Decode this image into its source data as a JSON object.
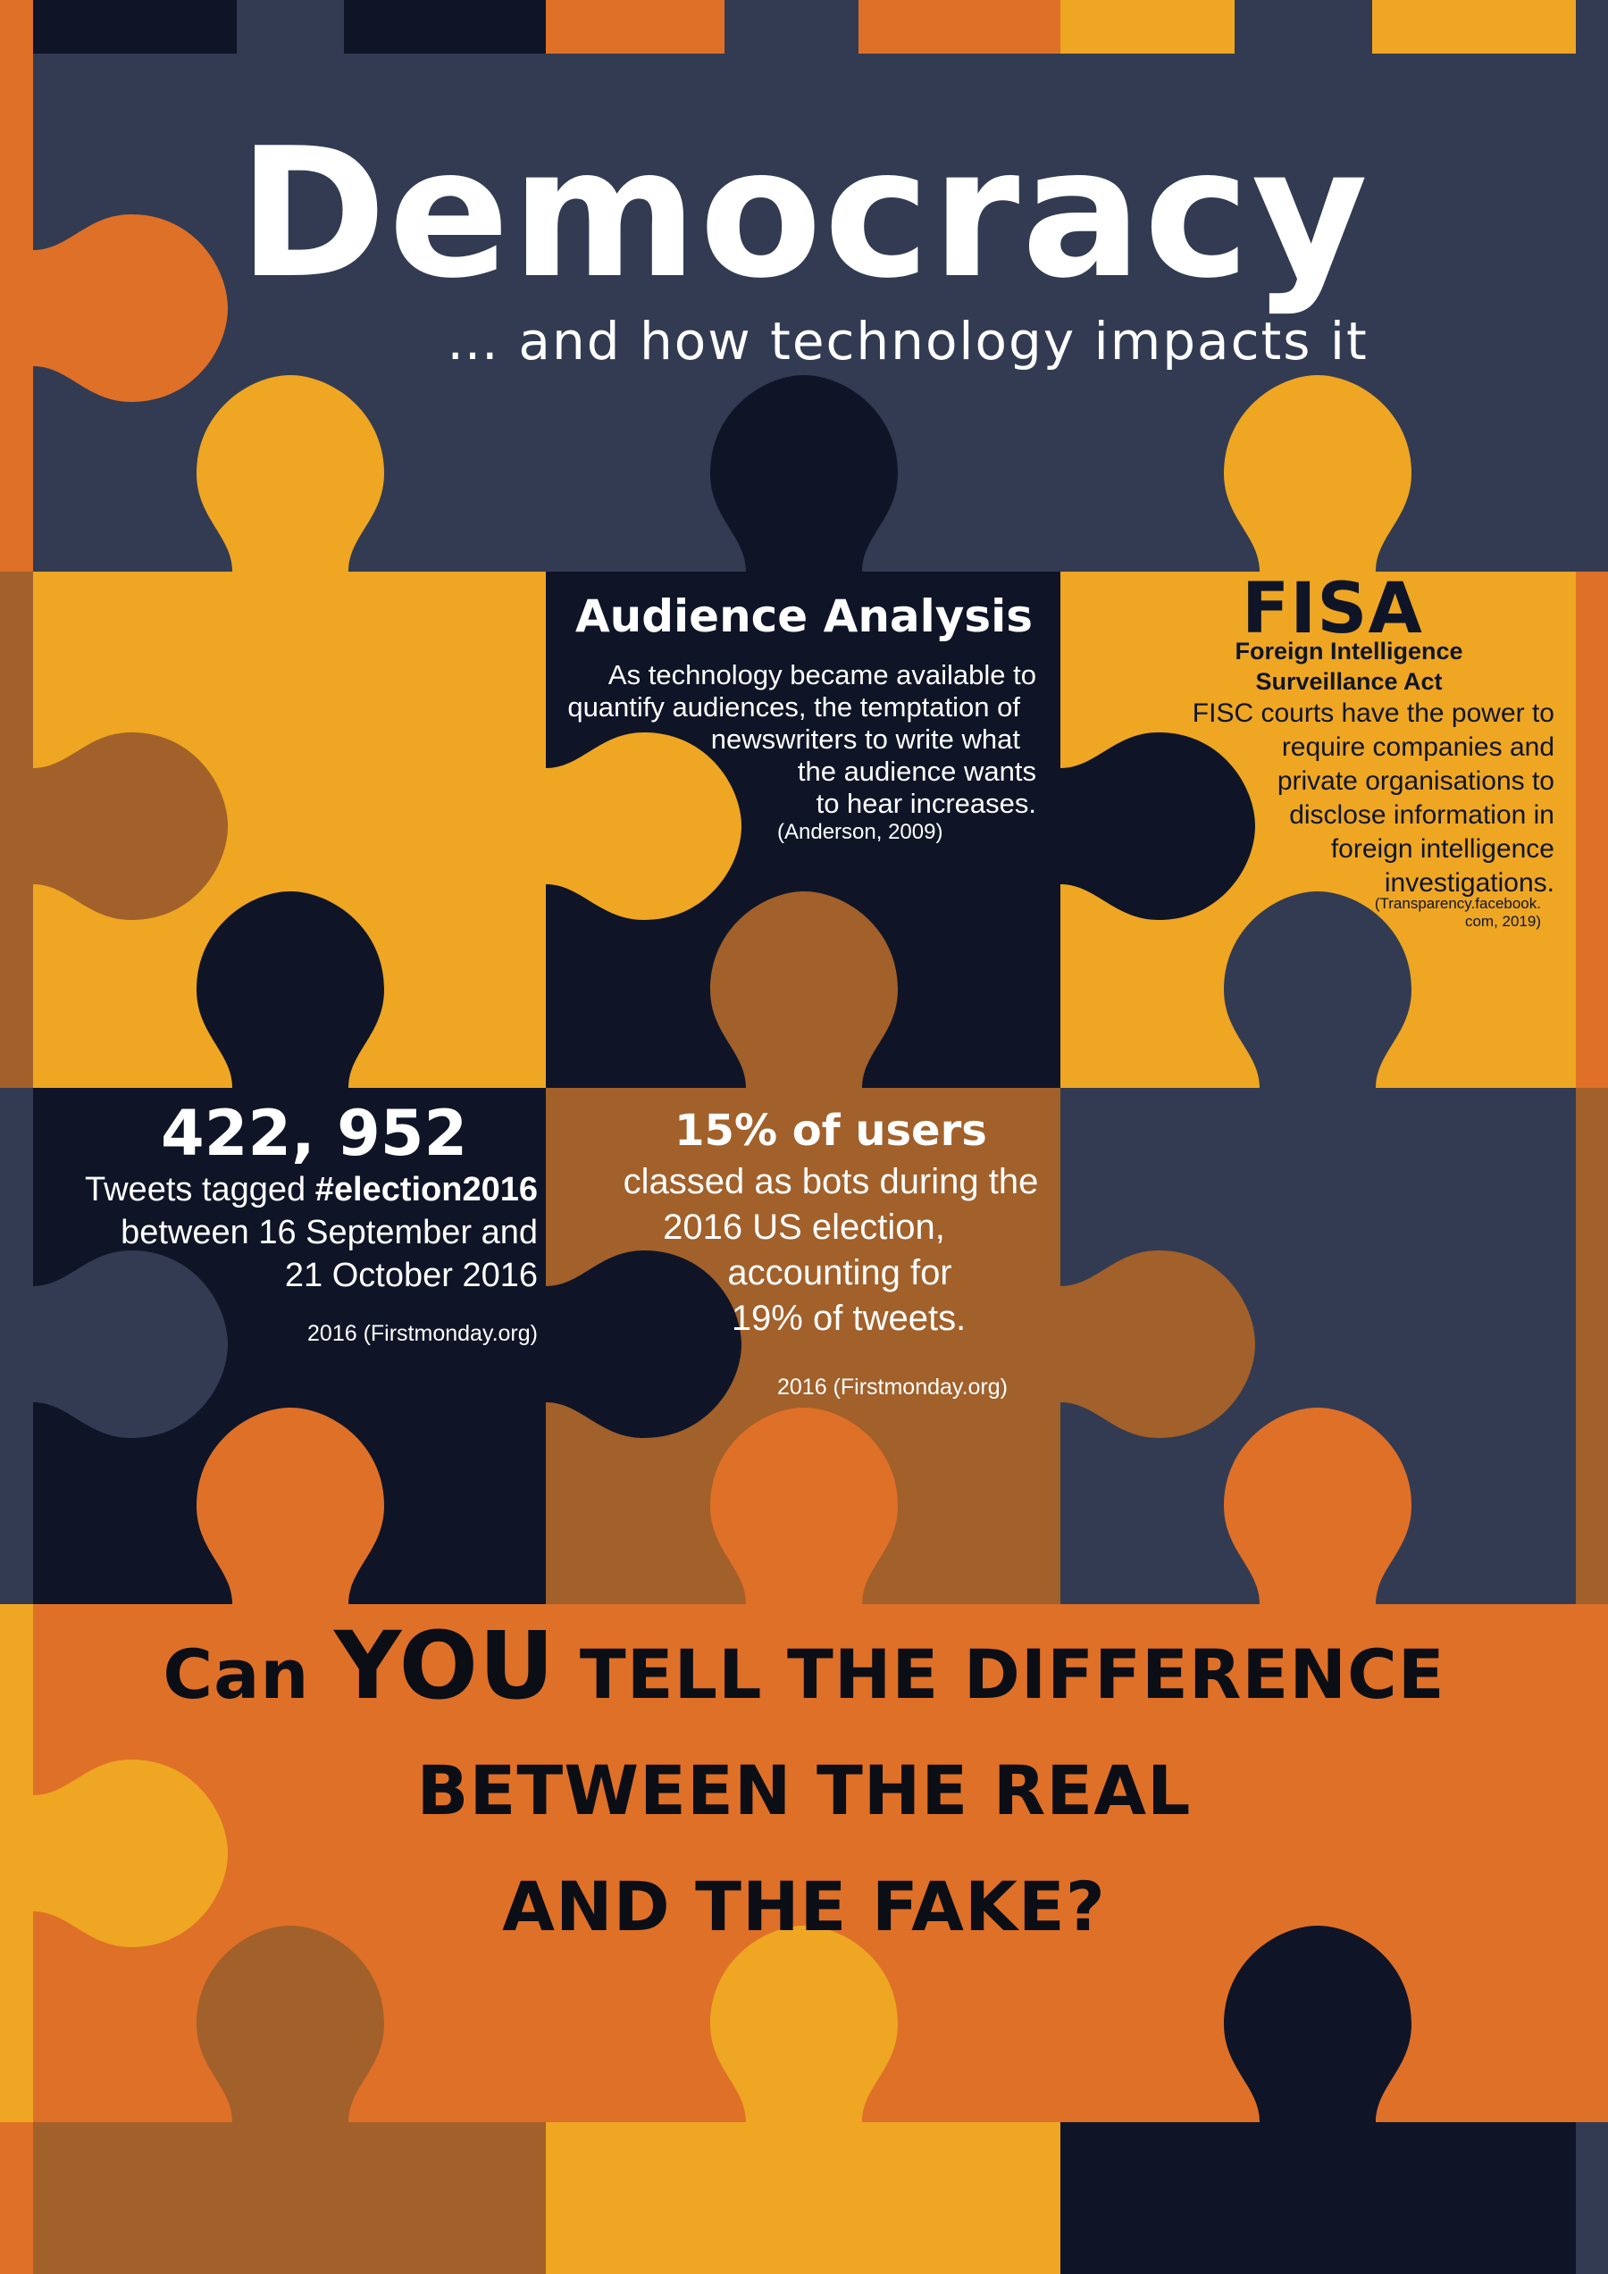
{
  "poster": {
    "title": "Democracy",
    "subtitle": "… and how technology impacts it"
  },
  "audience_analysis": {
    "heading": "Audience Analysis",
    "lines": [
      "As technology became available to",
      "quantify audiences, the temptation of",
      "newswriters to write what",
      "the audience wants",
      "to hear increases."
    ],
    "citation": "(Anderson, 2009)"
  },
  "fisa": {
    "heading": "FISA",
    "subheading_lines": [
      "Foreign Intelligence",
      "Surveillance Act"
    ],
    "lines": [
      "FISC courts have the power to",
      "require companies and",
      "private organisations to",
      "disclose information in",
      "foreign intelligence",
      "investigations."
    ],
    "citation_lines": [
      "(Transparency.facebook.",
      "com, 2019)"
    ]
  },
  "tweets": {
    "number": "422, 952",
    "line1_prefix": "Tweets tagged ",
    "hashtag": "#election2016",
    "line2": "between 16 September and",
    "line3": "21 October 2016",
    "citation": "2016 (Firstmonday.org)"
  },
  "bots": {
    "heading": "15% of users",
    "lines": [
      "classed as bots during the",
      "2016 US election,",
      "accounting for",
      "19% of tweets."
    ],
    "citation": "2016 (Firstmonday.org)"
  },
  "question": {
    "part1": "Can",
    "part2": "YOU",
    "part3": "tell the difference",
    "line2": "between the real",
    "line3": "and the fake?"
  },
  "colors": {
    "slate": "#323b52",
    "navy": "#0f1527",
    "gold": "#eea623",
    "orange": "#df7028",
    "brown": "#a2602a",
    "white": "#ffffff"
  }
}
